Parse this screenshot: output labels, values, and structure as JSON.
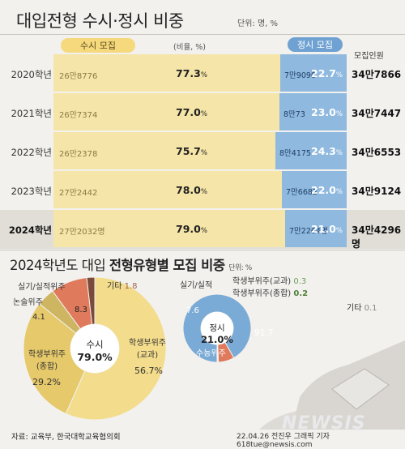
{
  "title": "대입전형 수시·정시 비중",
  "unit": "단위: 명, %",
  "legend": {
    "susi": "수시 모집",
    "jeongsi": "정시 모집",
    "ratio": "(비율, %)",
    "total_header": "모집인원"
  },
  "chart_data": [
    {
      "type": "bar",
      "stacked": true,
      "orientation": "horizontal",
      "categories": [
        "2020학년",
        "2021학년",
        "2022학년",
        "2023학년",
        "2024학년"
      ],
      "series": [
        {
          "name": "수시 모집",
          "values": [
            77.3,
            77.0,
            75.7,
            78.0,
            79.0
          ],
          "amounts": [
            "26만8776",
            "26만7374",
            "26만2378",
            "27만2442",
            "27만2032명"
          ]
        },
        {
          "name": "정시 모집",
          "values": [
            22.7,
            23.0,
            24.3,
            22.0,
            21.0
          ],
          "amounts": [
            "7만9090",
            "8만73",
            "8만4175",
            "7만6682",
            "7만2264명"
          ]
        }
      ],
      "totals": [
        "34만7866",
        "34만7447",
        "34만6553",
        "34만9124",
        "34만4296명"
      ],
      "pct_suffix": "%"
    },
    {
      "type": "pie",
      "title": "2024학년도 대입 전형유형별 모집 비중",
      "unit": "단위: %",
      "center": {
        "name": "수시",
        "value": "79.0%"
      },
      "slices": [
        {
          "name": "학생부위주(교과)",
          "value": 56.7,
          "color": "#f3dc8c"
        },
        {
          "name": "학생부위주(종합)",
          "value": 29.2,
          "color": "#e6c96a"
        },
        {
          "name": "논술위주",
          "value": 4.1,
          "color": "#cdb562"
        },
        {
          "name": "실기/실적위주",
          "value": 8.3,
          "color": "#df7a5c"
        },
        {
          "name": "기타",
          "value": 1.8,
          "color": "#7a4a3a"
        }
      ]
    },
    {
      "type": "pie",
      "center": {
        "name": "정시",
        "value": "21.0%"
      },
      "slices": [
        {
          "name": "수능위주",
          "value": 91.7,
          "color": "#7aaad6"
        },
        {
          "name": "실기/실적",
          "value": 7.6,
          "color": "#df7a5c"
        },
        {
          "name": "학생부위주(교과)",
          "value": 0.3,
          "color": "#9dbf7a"
        },
        {
          "name": "학생부위주(종합)",
          "value": 0.2,
          "color": "#6f9f5a"
        },
        {
          "name": "기타",
          "value": 0.1,
          "color": "#999999"
        }
      ]
    }
  ],
  "donut1_labels": {
    "gyogwa_a": "학생부위주",
    "gyogwa_b": "(교과)",
    "gyogwa_v": "56.7%",
    "jonghap_a": "학생부위주",
    "jonghap_b": "(종합)",
    "jonghap_v": "29.2%",
    "nonsul": "논술위주",
    "nonsul_v": "4.1",
    "silgi": "실기/실적위주",
    "silgi_v": "8.3",
    "gita": "기타",
    "gita_v": "1.8",
    "center_a": "수시",
    "center_b": "79.0%"
  },
  "donut2_labels": {
    "silgi": "실기/실적",
    "silgi_v": "7.6",
    "gyogwa": "학생부위주(교과)",
    "gyogwa_v": "0.3",
    "jonghap": "학생부위주(종합)",
    "jonghap_v": "0.2",
    "gita": "기타",
    "gita_v": "0.1",
    "suneung": "수능위주",
    "suneung_v": "91.7",
    "center_a": "정시",
    "center_b": "21.0%"
  },
  "source": "자료: 교육부, 한국대학교육협의회",
  "credit": "22.04.26  전진우  그래픽  기자  618tue@newsis.com",
  "logo": "NEWSIS"
}
